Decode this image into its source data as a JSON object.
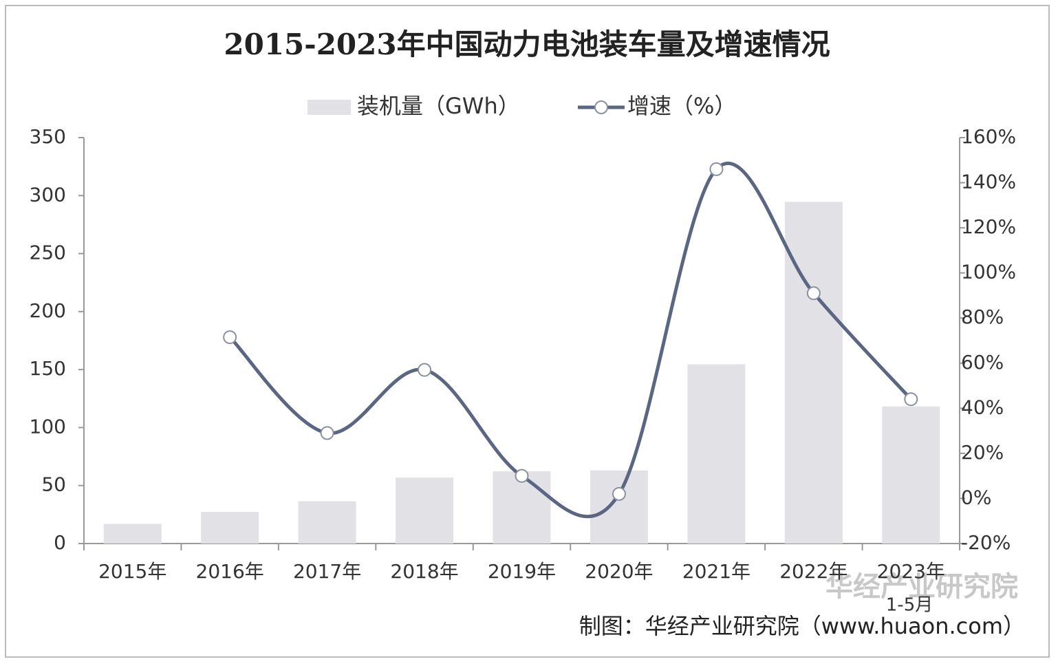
{
  "chart_data": {
    "type": "bar-line",
    "title": "2015-2023年中国动力电池装车量及增速情况",
    "categories": [
      "2015年",
      "2016年",
      "2017年",
      "2018年",
      "2019年",
      "2020年",
      "2021年",
      "2022年",
      "2023年"
    ],
    "series": [
      {
        "name": "装机量（GWh）",
        "type": "bar",
        "color": "#e2e2e6",
        "values": [
          16.9,
          27.3,
          36.5,
          56.9,
          62.2,
          63.0,
          154.5,
          294.6,
          118.2
        ]
      },
      {
        "name": "增速（%）",
        "type": "line",
        "axis": "y2",
        "color": "#5b6682",
        "values": [
          null,
          71.5,
          29,
          57,
          10,
          2,
          146,
          91,
          44
        ]
      }
    ],
    "ylim": [
      0,
      350
    ],
    "yticks": [
      0,
      50,
      100,
      150,
      200,
      250,
      300,
      350
    ],
    "y2lim": [
      -20,
      160
    ],
    "y2ticks": [
      {
        "value": -20,
        "label": "-20%"
      },
      {
        "value": 0,
        "label": "0%"
      },
      {
        "value": 20,
        "label": "20%"
      },
      {
        "value": 40,
        "label": "40%"
      },
      {
        "value": 60,
        "label": "60%"
      },
      {
        "value": 80,
        "label": "80%"
      },
      {
        "value": 100,
        "label": "100%"
      },
      {
        "value": 120,
        "label": "120%"
      },
      {
        "value": 140,
        "label": "140%"
      },
      {
        "value": 160,
        "label": "160%"
      }
    ],
    "annotations": [
      "1-5月",
      "制图：华经产业研究院（www.huaon.com）",
      "华经产业研究院"
    ],
    "legend": "top"
  }
}
